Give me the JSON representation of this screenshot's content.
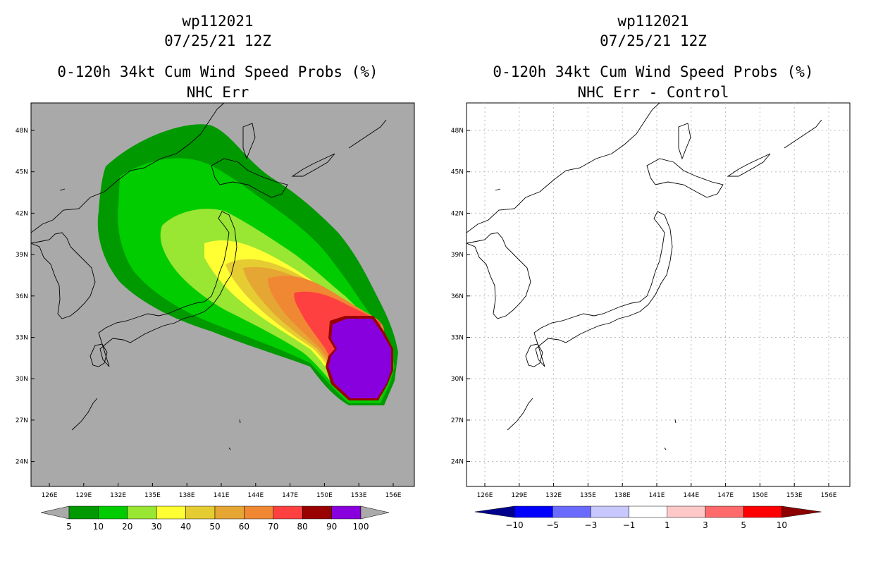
{
  "left": {
    "title_lines": [
      "wp112021",
      "07/25/21 12Z",
      "0-120h 34kt Cum Wind Speed Probs (%)",
      "NHC Err"
    ],
    "lat_labels": [
      "48N",
      "45N",
      "42N",
      "39N",
      "36N",
      "33N",
      "30N",
      "27N",
      "24N"
    ],
    "lon_labels": [
      "126E",
      "129E",
      "132E",
      "135E",
      "138E",
      "141E",
      "144E",
      "147E",
      "150E",
      "153E",
      "156E"
    ],
    "background_color": "#a9a9a9",
    "colorbar": {
      "labels": [
        "5",
        "10",
        "20",
        "30",
        "40",
        "50",
        "60",
        "70",
        "80",
        "90",
        "100"
      ],
      "colors": [
        "#009900",
        "#00cc00",
        "#99e633",
        "#ffff33",
        "#e6cc33",
        "#e6a633",
        "#f08833",
        "#ff4040",
        "#990000",
        "#8800dd"
      ]
    }
  },
  "right": {
    "title_lines": [
      "wp112021",
      "07/25/21 12Z",
      "0-120h 34kt Cum Wind Speed Probs (%)",
      "NHC Err - Control"
    ],
    "lat_labels": [
      "48N",
      "45N",
      "42N",
      "39N",
      "36N",
      "33N",
      "30N",
      "27N",
      "24N"
    ],
    "lon_labels": [
      "126E",
      "129E",
      "132E",
      "135E",
      "138E",
      "141E",
      "144E",
      "147E",
      "150E",
      "153E",
      "156E"
    ],
    "background_color": "#ffffff",
    "colorbar": {
      "labels": [
        "-10",
        "-5",
        "-3",
        "-1",
        "1",
        "3",
        "5",
        "10"
      ],
      "colors": [
        "#00008b",
        "#0000ff",
        "#6a6aff",
        "#c8c8ff",
        "#ffffff",
        "#ffc8c8",
        "#ff6a6a",
        "#ff0000",
        "#8b0000"
      ]
    }
  }
}
